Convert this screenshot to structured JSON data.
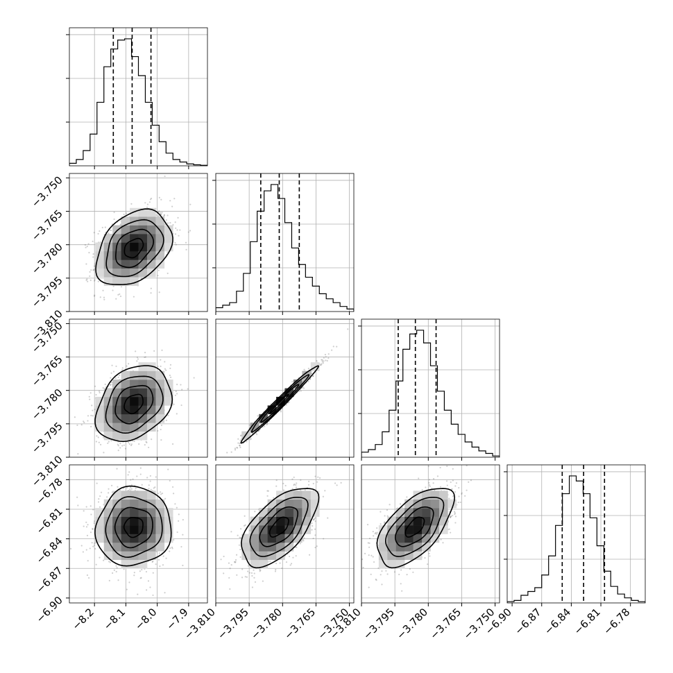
{
  "chart_data": {
    "type": "corner",
    "parameters": [
      {
        "id": "p0",
        "lim": [
          -8.28,
          -7.84
        ],
        "ticks": [
          -8.2,
          -8.1,
          -8.0,
          -7.9
        ],
        "tick_labels": [
          "−8.2",
          "−8.1",
          "−8.0",
          "−7.9"
        ],
        "center": -8.075,
        "sigma": 0.06,
        "quantiles": [
          -8.14,
          -8.08,
          -8.02
        ]
      },
      {
        "id": "p1",
        "lim": [
          -3.81,
          -3.748
        ],
        "ticks": [
          -3.81,
          -3.795,
          -3.78,
          -3.765,
          -3.75
        ],
        "tick_labels": [
          "−3.810",
          "−3.795",
          "−3.780",
          "−3.765",
          "−3.750"
        ],
        "center": -3.7815,
        "sigma": 0.0085,
        "quantiles": [
          -3.7898,
          -3.7815,
          -3.7725
        ]
      },
      {
        "id": "p2",
        "lim": [
          -3.81,
          -3.748
        ],
        "ticks": [
          -3.81,
          -3.795,
          -3.78,
          -3.765,
          -3.75
        ],
        "tick_labels": [
          "−3.810",
          "−3.795",
          "−3.780",
          "−3.765",
          "−3.750"
        ],
        "center": -3.786,
        "sigma": 0.0085,
        "quantiles": [
          -3.7935,
          -3.7858,
          -3.7765
        ]
      },
      {
        "id": "p3",
        "lim": [
          -6.905,
          -6.765
        ],
        "ticks": [
          -6.9,
          -6.87,
          -6.84,
          -6.81,
          -6.78
        ],
        "tick_labels": [
          "−6.90",
          "−6.87",
          "−6.84",
          "−6.81",
          "−6.78"
        ],
        "center": -6.828,
        "sigma": 0.02,
        "quantiles": [
          -6.8492,
          -6.8275,
          -6.8063
        ]
      }
    ],
    "correlations": {
      "1-0": 0.35,
      "2-0": 0.3,
      "2-1": 0.985,
      "3-0": 0.05,
      "3-1": 0.6,
      "3-2": 0.6
    },
    "hist_bins": 20,
    "hist_values": {
      "p0": [
        0.02,
        0.05,
        0.12,
        0.25,
        0.5,
        0.78,
        0.92,
        0.99,
        1.0,
        0.86,
        0.71,
        0.5,
        0.32,
        0.19,
        0.1,
        0.05,
        0.03,
        0.015,
        0.008,
        0.004
      ],
      "p1": [
        0.03,
        0.05,
        0.07,
        0.16,
        0.3,
        0.55,
        0.79,
        0.95,
        1.0,
        0.89,
        0.7,
        0.5,
        0.37,
        0.27,
        0.2,
        0.14,
        0.1,
        0.07,
        0.04,
        0.02
      ],
      "p2": [
        0.04,
        0.06,
        0.1,
        0.2,
        0.37,
        0.6,
        0.85,
        0.97,
        1.0,
        0.9,
        0.72,
        0.52,
        0.37,
        0.26,
        0.18,
        0.12,
        0.08,
        0.05,
        0.03,
        0.01
      ],
      "p3": [
        0.01,
        0.02,
        0.06,
        0.09,
        0.12,
        0.22,
        0.37,
        0.61,
        0.86,
        1.0,
        0.96,
        0.86,
        0.67,
        0.45,
        0.25,
        0.13,
        0.07,
        0.04,
        0.02,
        0.01
      ]
    },
    "contour_levels_sigma": [
      0.5,
      1.0,
      1.5,
      2.0
    ],
    "grid": true,
    "colors": {
      "line": "#000000",
      "grid": "#b0b0b0",
      "points": "#6b6b6b"
    }
  }
}
